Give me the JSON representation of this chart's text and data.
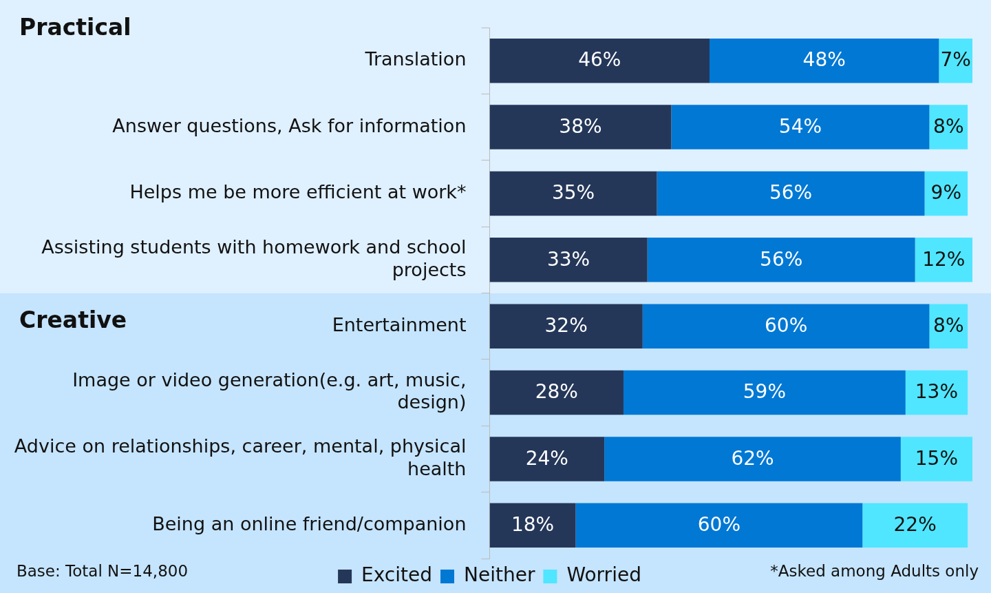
{
  "chart_data": {
    "type": "bar",
    "orientation": "horizontal",
    "stacked": true,
    "legend": "bottom",
    "tick_labels": "y",
    "grid": false,
    "categories": [
      "Translation",
      "Answer questions, Ask for information",
      "Helps me be more efficient at work*",
      "Assisting students with homework and school projects",
      "Entertainment",
      "Image or video generation(e.g. art, music, design)",
      "Advice on relationships, career, mental, physical health",
      "Being an online friend/companion"
    ],
    "series": [
      {
        "name": "Excited",
        "color": "#253759",
        "values": [
          46,
          38,
          35,
          33,
          32,
          28,
          24,
          18
        ],
        "value_labels": [
          "46%",
          "38%",
          "35%",
          "33%",
          "32%",
          "28%",
          "24%",
          "18%"
        ]
      },
      {
        "name": "Neither",
        "color": "#0078d4",
        "values": [
          48,
          54,
          56,
          56,
          60,
          59,
          62,
          60
        ],
        "value_labels": [
          "48%",
          "54%",
          "56%",
          "56%",
          "60%",
          "59%",
          "62%",
          "60%"
        ]
      },
      {
        "name": "Worried",
        "color": "#50e6ff",
        "values": [
          7,
          8,
          9,
          12,
          8,
          13,
          15,
          22
        ],
        "value_labels": [
          "7%",
          "8%",
          "9%",
          "12%",
          "8%",
          "13%",
          "15%",
          "22%"
        ]
      }
    ],
    "bands": [
      {
        "axis": "y",
        "from": "Translation",
        "to": "Assisting students with homework and school projects",
        "label": "Practical",
        "color": "#dff0ff"
      },
      {
        "axis": "y",
        "from": "Entertainment",
        "to": "Being an online friend/companion",
        "label": "Creative",
        "color": "#c5e4fd"
      }
    ],
    "annotations": [
      "Base: Total N=14,800",
      "*Asked among Adults only"
    ]
  }
}
